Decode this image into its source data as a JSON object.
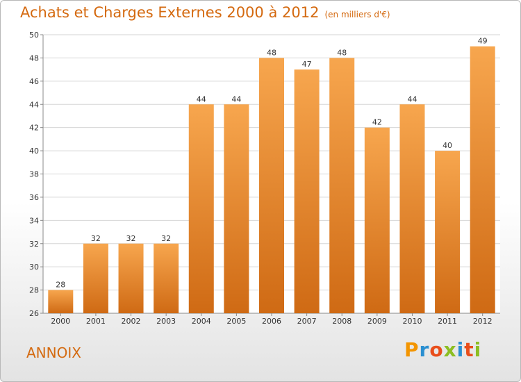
{
  "title": "Achats et Charges Externes 2000 à 2012",
  "subtitle": "(en milliers d'€)",
  "commune": "ANNOIX",
  "logo": {
    "text": "Proxiti",
    "colors": [
      "#f39500",
      "#2a8fd1",
      "#e94e1b",
      "#8cbe22",
      "#2a8fd1",
      "#e94e1b",
      "#8cbe22"
    ]
  },
  "colors": {
    "bar_light": "#f7a64e",
    "bar_dark": "#cf6a14",
    "title": "#d4690f",
    "grid": "#d6d6d6"
  },
  "chart_data": {
    "type": "bar",
    "title": "Achats et Charges Externes 2000 à 2012",
    "subtitle": "(en milliers d'€)",
    "xlabel": "",
    "ylabel": "",
    "categories": [
      "2000",
      "2001",
      "2002",
      "2003",
      "2004",
      "2005",
      "2006",
      "2007",
      "2008",
      "2009",
      "2010",
      "2011",
      "2012"
    ],
    "values": [
      28,
      32,
      32,
      32,
      44,
      44,
      48,
      47,
      48,
      42,
      44,
      40,
      49
    ],
    "ylim": [
      26,
      50
    ],
    "yticks": [
      26,
      28,
      30,
      32,
      34,
      36,
      38,
      40,
      42,
      44,
      46,
      48,
      50
    ],
    "grid": true,
    "data_labels": true
  }
}
